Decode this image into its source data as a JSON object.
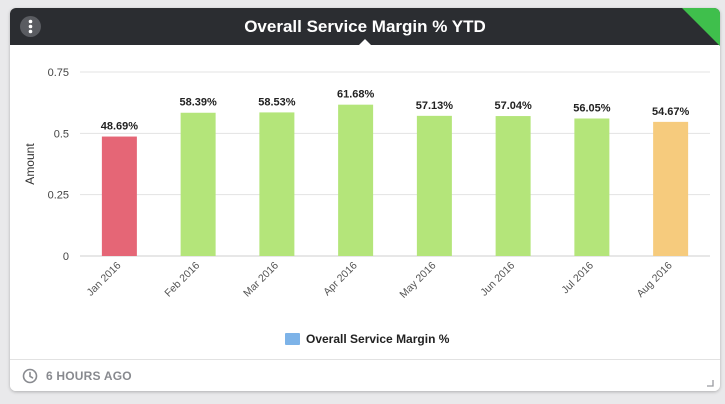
{
  "widget": {
    "title": "Overall Service Margin % YTD",
    "updated": "6 HOURS AGO",
    "accent_color": "#3fbf4c"
  },
  "chart_data": {
    "type": "bar",
    "title": "Overall Service Margin % YTD",
    "xlabel": "",
    "ylabel": "Amount",
    "ylim": [
      0,
      0.75
    ],
    "yticks": [
      "0",
      "0.25",
      "0.5",
      "0.75"
    ],
    "ytick_values": [
      0,
      0.25,
      0.5,
      0.75
    ],
    "grid": true,
    "legend_position": "bottom",
    "categories": [
      "Jan 2016",
      "Feb 2016",
      "Mar 2016",
      "Apr 2016",
      "May 2016",
      "Jun 2016",
      "Jul 2016",
      "Aug 2016"
    ],
    "series": [
      {
        "name": "Overall Service Margin %",
        "color": "#7db3e8",
        "values": [
          0.4869,
          0.5839,
          0.5853,
          0.6168,
          0.5713,
          0.5704,
          0.5605,
          0.5467
        ],
        "labels": [
          "48.69%",
          "58.39%",
          "58.53%",
          "61.68%",
          "57.13%",
          "57.04%",
          "56.05%",
          "54.67%"
        ],
        "bar_colors": [
          "#e56676",
          "#b4e57a",
          "#b4e57a",
          "#b4e57a",
          "#b4e57a",
          "#b4e57a",
          "#b4e57a",
          "#f6cb7d"
        ]
      }
    ]
  }
}
